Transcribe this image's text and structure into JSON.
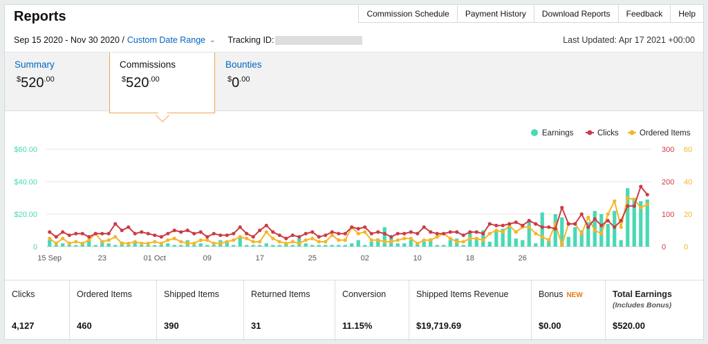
{
  "page": {
    "title": "Reports"
  },
  "topnav": [
    "Commission Schedule",
    "Payment History",
    "Download Reports",
    "Feedback",
    "Help"
  ],
  "filter": {
    "date_range": "Sep 15 2020 - Nov 30 2020 /",
    "date_range_link": "Custom Date Range",
    "tracking_label": "Tracking ID:",
    "last_updated": "Last Updated: Apr 17 2021 +00:00"
  },
  "tabs": [
    {
      "label": "Summary",
      "dollar": "$",
      "whole": "520",
      "cents": ".00"
    },
    {
      "label": "Commissions",
      "dollar": "$",
      "whole": "520",
      "cents": ".00"
    },
    {
      "label": "Bounties",
      "dollar": "$",
      "whole": "0",
      "cents": ".00"
    }
  ],
  "stats": [
    {
      "label": "Clicks",
      "value": "4,127"
    },
    {
      "label": "Ordered Items",
      "value": "460"
    },
    {
      "label": "Shipped Items",
      "value": "390"
    },
    {
      "label": "Returned Items",
      "value": "31"
    },
    {
      "label": "Conversion",
      "value": "11.15%"
    },
    {
      "label": "Shipped Items Revenue",
      "value": "$19,719.69"
    },
    {
      "label": "Bonus",
      "badge": "NEW",
      "value": "$0.00"
    },
    {
      "label": "Total Earnings",
      "sub": "(Includes Bonus)",
      "value": "$520.00"
    }
  ],
  "colors": {
    "earnings": "#48d9b5",
    "clicks": "#cc3b45",
    "ordered": "#f4b528",
    "link": "#0066c0",
    "accent": "#f0a34a"
  },
  "chart_data": {
    "type": "bar+line",
    "legend": [
      "Earnings",
      "Clicks",
      "Ordered Items"
    ],
    "legend_position": "top-right",
    "x_ticks": [
      "15 Sep",
      "23",
      "01 Oct",
      "09",
      "17",
      "25",
      "02",
      "10",
      "18",
      "26"
    ],
    "y_left_ticks": [
      "0",
      "$20.00",
      "$40.00",
      "$60.00"
    ],
    "y_right1_ticks": [
      "0",
      "100",
      "200",
      "300"
    ],
    "y_right2_ticks": [
      "0",
      "20",
      "40",
      "60"
    ],
    "y_left_range": [
      0,
      60
    ],
    "y_right1_range": [
      0,
      300
    ],
    "y_right2_range": [
      0,
      60
    ],
    "grid": true,
    "series": [
      {
        "name": "Earnings",
        "axis": "left",
        "values": [
          4,
          1,
          2,
          1,
          1,
          2,
          4,
          1,
          4,
          2,
          1,
          3,
          1,
          3,
          1,
          1,
          1,
          1,
          2,
          1,
          1,
          4,
          1,
          2,
          1,
          1,
          4,
          3,
          1,
          6,
          1,
          1,
          1,
          2,
          1,
          1,
          2,
          1,
          5,
          2,
          1,
          1,
          1,
          1,
          1,
          1,
          2,
          4,
          1,
          3,
          5,
          12,
          6,
          2,
          2,
          4,
          2,
          3,
          5,
          1,
          1,
          4,
          5,
          1,
          9,
          5,
          10,
          3,
          10,
          11,
          12,
          5,
          4,
          16,
          2,
          21,
          5,
          20,
          18,
          6,
          12,
          10,
          15,
          22,
          20,
          14,
          22,
          4,
          36,
          30,
          28,
          29
        ]
      },
      {
        "name": "Clicks",
        "axis": "right1",
        "values": [
          45,
          30,
          45,
          35,
          40,
          40,
          30,
          40,
          40,
          40,
          70,
          50,
          60,
          40,
          45,
          40,
          35,
          30,
          40,
          50,
          45,
          50,
          40,
          45,
          30,
          40,
          35,
          35,
          40,
          60,
          40,
          30,
          50,
          65,
          45,
          35,
          25,
          35,
          30,
          40,
          45,
          30,
          35,
          45,
          40,
          40,
          60,
          55,
          60,
          40,
          45,
          40,
          30,
          40,
          40,
          45,
          40,
          60,
          45,
          40,
          40,
          45,
          45,
          35,
          45,
          45,
          40,
          70,
          65,
          65,
          70,
          75,
          65,
          80,
          70,
          60,
          60,
          55,
          120,
          70,
          70,
          100,
          60,
          85,
          65,
          80,
          60,
          80,
          125,
          125,
          185,
          160
        ]
      },
      {
        "name": "Ordered Items",
        "axis": "right2",
        "values": [
          5,
          2,
          5,
          2,
          3,
          2,
          4,
          8,
          3,
          4,
          6,
          2,
          2,
          3,
          2,
          2,
          3,
          2,
          4,
          5,
          3,
          2,
          2,
          4,
          4,
          2,
          2,
          3,
          4,
          6,
          5,
          3,
          3,
          9,
          5,
          3,
          2,
          3,
          2,
          4,
          5,
          3,
          3,
          7,
          4,
          4,
          12,
          8,
          9,
          4,
          4,
          3,
          3,
          4,
          5,
          5,
          2,
          4,
          4,
          6,
          8,
          5,
          3,
          3,
          5,
          5,
          4,
          8,
          10,
          9,
          13,
          9,
          12,
          12,
          8,
          6,
          4,
          14,
          1,
          14,
          14,
          8,
          18,
          10,
          8,
          20,
          28,
          12,
          30,
          29,
          24,
          26
        ]
      }
    ]
  }
}
